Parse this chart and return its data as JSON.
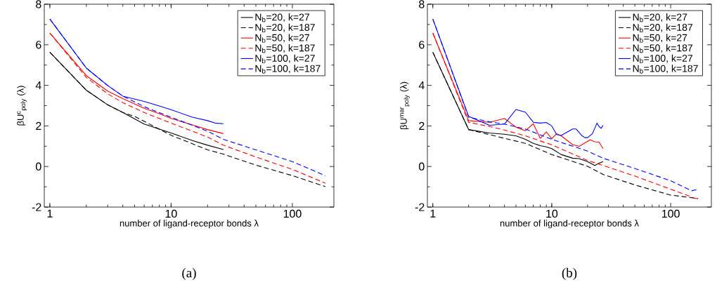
{
  "chart_data": [
    {
      "type": "line",
      "xlabel": "number of ligand-receptor bonds  λ",
      "ylabel": "βU$^{c}$$_{poly}$ (λ)",
      "log": "x",
      "xlim": [
        0.9,
        220
      ],
      "ylim": [
        -2,
        8
      ],
      "xticks": [
        1,
        10,
        100
      ],
      "yticks": [
        -2,
        0,
        2,
        4,
        6,
        8
      ],
      "legend": "top right",
      "grid": false,
      "annotations": [
        "(a)"
      ],
      "series": [
        {
          "name": "N$_{b}$=20, k=27",
          "color": "#000000",
          "line_style": "solid",
          "x": [
            1,
            2,
            3,
            4,
            6,
            10,
            15,
            20,
            27
          ],
          "values": [
            5.63,
            3.76,
            3.04,
            2.66,
            2.09,
            1.65,
            1.28,
            1.05,
            0.84
          ]
        },
        {
          "name": "N$_{b}$=20, k=187",
          "color": "#000000",
          "line_style": "dashed",
          "x": [
            1,
            2,
            3,
            4,
            5,
            10,
            20,
            27,
            50,
            100,
            187
          ],
          "values": [
            5.63,
            3.76,
            3.04,
            2.66,
            2.47,
            1.54,
            0.82,
            0.61,
            0.07,
            -0.45,
            -0.99
          ]
        },
        {
          "name": "N$_{b}$=50, k=27",
          "color": "#ff0000",
          "line_style": "solid",
          "x": [
            1,
            2,
            3,
            4,
            6,
            8,
            10,
            15,
            20,
            27
          ],
          "values": [
            6.58,
            4.48,
            3.72,
            3.35,
            2.87,
            2.6,
            2.37,
            2.05,
            1.82,
            1.62
          ]
        },
        {
          "name": "N$_{b}$=50, k=187",
          "color": "#ff0000",
          "line_style": "dashed",
          "x": [
            1,
            2,
            3,
            4,
            6,
            10,
            20,
            27,
            50,
            100,
            187
          ],
          "values": [
            6.58,
            4.39,
            3.58,
            3.15,
            2.66,
            2.14,
            1.45,
            1.05,
            0.47,
            -0.14,
            -0.82
          ]
        },
        {
          "name": "N$_{b}$=100, k=27",
          "color": "#0000ff",
          "line_style": "solid",
          "x": [
            1,
            2,
            3,
            4,
            6,
            8,
            10,
            15,
            20,
            23,
            27
          ],
          "values": [
            7.27,
            4.85,
            3.99,
            3.47,
            3.21,
            2.98,
            2.8,
            2.43,
            2.26,
            2.14,
            2.11
          ]
        },
        {
          "name": "N$_{b}$=100, k=187",
          "color": "#0000ff",
          "line_style": "dashed",
          "x": [
            1,
            2,
            3,
            4,
            6,
            10,
            20,
            27,
            50,
            100,
            187
          ],
          "values": [
            7.27,
            4.85,
            3.99,
            3.47,
            2.95,
            2.43,
            1.74,
            1.34,
            0.82,
            0.24,
            -0.45
          ]
        }
      ]
    },
    {
      "type": "line",
      "xlabel": "number of ligand-receptor bonds  λ",
      "ylabel": "βU$^{mar}$$_{poly}$ (λ)",
      "log": "x",
      "xlim": [
        0.9,
        220
      ],
      "ylim": [
        -2,
        8
      ],
      "xticks": [
        1,
        10,
        100
      ],
      "yticks": [
        -2,
        0,
        2,
        4,
        6,
        8
      ],
      "legend": "top right",
      "grid": false,
      "annotations": [
        "(b)"
      ],
      "series": [
        {
          "name": "N$_{b}$=20, k=27",
          "color": "#000000",
          "line_style": "solid",
          "x": [
            1,
            2,
            3,
            4,
            5,
            6,
            7,
            8,
            9,
            10,
            12,
            15,
            17,
            20,
            23,
            25,
            27
          ],
          "values": [
            5.63,
            1.82,
            1.65,
            1.59,
            1.51,
            1.34,
            1.14,
            1.03,
            0.97,
            0.88,
            0.59,
            0.41,
            0.39,
            0.24,
            0.05,
            0.16,
            0.24
          ]
        },
        {
          "name": "N$_{b}$=20, k=187",
          "color": "#000000",
          "line_style": "dashed",
          "x": [
            1,
            2,
            3,
            4,
            6,
            10,
            20,
            27,
            50,
            100,
            170
          ],
          "values": [
            5.63,
            1.82,
            1.57,
            1.39,
            1.14,
            0.59,
            0.01,
            -0.39,
            -0.91,
            -1.41,
            -1.58
          ]
        },
        {
          "name": "N$_{b}$=50, k=27",
          "color": "#ff0000",
          "line_style": "solid",
          "x": [
            1,
            2,
            3,
            4,
            5,
            6,
            7,
            8,
            9,
            10,
            11,
            12,
            15,
            17,
            21,
            23,
            25,
            27
          ],
          "values": [
            6.58,
            2.26,
            2.18,
            2.37,
            1.94,
            1.76,
            2.11,
            1.39,
            1.71,
            1.37,
            1.62,
            1.51,
            1.08,
            0.99,
            1.31,
            1.22,
            1.2,
            0.88
          ]
        },
        {
          "name": "N$_{b}$=50, k=187",
          "color": "#ff0000",
          "line_style": "dashed",
          "x": [
            1,
            2,
            3,
            4,
            6,
            10,
            20,
            27,
            50,
            100,
            170
          ],
          "values": [
            6.58,
            2.18,
            1.97,
            1.8,
            1.51,
            1.07,
            0.3,
            0.05,
            -0.47,
            -1.12,
            -1.62
          ]
        },
        {
          "name": "N$_{b}$=100, k=27",
          "color": "#0000ff",
          "line_style": "solid",
          "x": [
            1,
            2,
            3,
            4,
            5,
            6,
            7,
            8,
            9,
            10,
            11,
            12,
            15,
            16,
            18,
            19,
            20,
            22,
            24,
            25,
            26,
            27
          ],
          "values": [
            7.27,
            2.47,
            2.03,
            2.09,
            2.81,
            2.68,
            2.18,
            2.14,
            2.17,
            2.0,
            1.57,
            1.53,
            1.85,
            1.85,
            1.51,
            1.42,
            1.42,
            1.62,
            2.14,
            1.97,
            1.88,
            2.03
          ]
        },
        {
          "name": "N$_{b}$=100, k=187",
          "color": "#0000ff",
          "line_style": "dashed",
          "x": [
            1,
            2,
            3,
            4,
            6,
            10,
            20,
            27,
            50,
            100,
            150,
            170
          ],
          "values": [
            7.27,
            2.43,
            2.2,
            2.09,
            1.85,
            1.34,
            0.76,
            0.41,
            -0.1,
            -0.7,
            -1.2,
            -1.12
          ]
        }
      ]
    }
  ]
}
